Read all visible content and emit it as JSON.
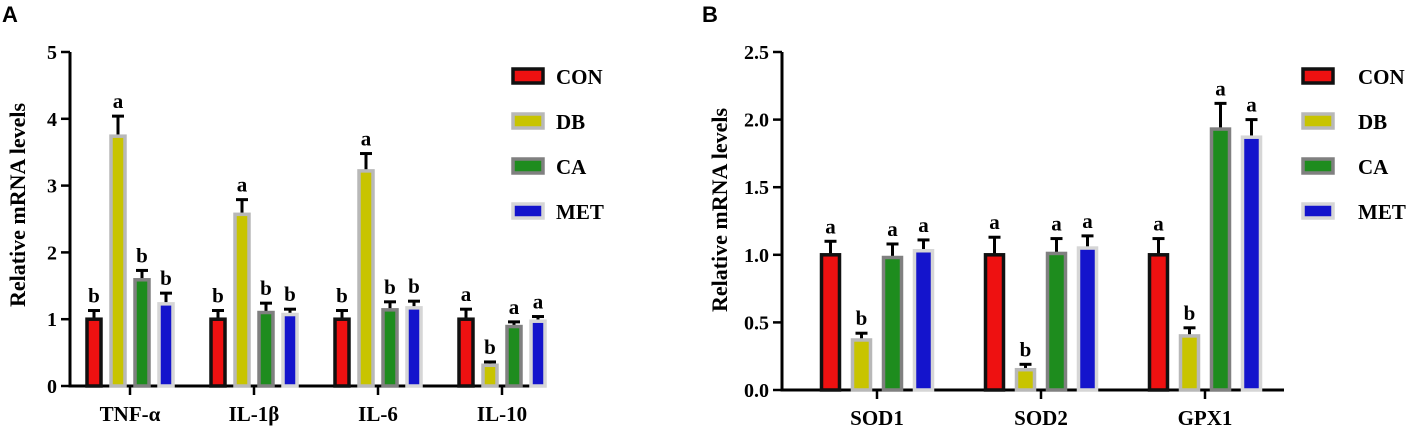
{
  "colors": {
    "CON": {
      "fill": "#ee1111",
      "stroke": "#111111"
    },
    "DB": {
      "fill": "#c8c400",
      "stroke": "#b8b8b8"
    },
    "CA": {
      "fill": "#1e8c1e",
      "stroke": "#808080"
    },
    "MET": {
      "fill": "#1414cc",
      "stroke": "#d6d6d6"
    }
  },
  "chart_data": [
    {
      "panel": "A",
      "type": "bar",
      "ylabel": "Relative mRNA levels",
      "ylim": [
        0,
        5
      ],
      "yticks": [
        "0",
        "1",
        "2",
        "3",
        "4",
        "5"
      ],
      "categories": [
        "TNF-α",
        "IL-1β",
        "IL-6",
        "IL-10"
      ],
      "series": [
        {
          "name": "CON",
          "values": [
            1.0,
            1.0,
            1.0,
            1.0
          ],
          "errors": [
            0.13,
            0.13,
            0.13,
            0.15
          ],
          "labels": [
            "b",
            "b",
            "b",
            "a"
          ]
        },
        {
          "name": "DB",
          "values": [
            3.74,
            2.57,
            3.22,
            0.31
          ],
          "errors": [
            0.3,
            0.22,
            0.26,
            0.05
          ],
          "labels": [
            "a",
            "a",
            "a",
            "b"
          ]
        },
        {
          "name": "CA",
          "values": [
            1.59,
            1.1,
            1.14,
            0.89
          ],
          "errors": [
            0.14,
            0.14,
            0.12,
            0.07
          ],
          "labels": [
            "b",
            "b",
            "b",
            "a"
          ]
        },
        {
          "name": "MET",
          "values": [
            1.23,
            1.07,
            1.17,
            0.97
          ],
          "errors": [
            0.16,
            0.08,
            0.1,
            0.07
          ],
          "labels": [
            "b",
            "b",
            "b",
            "a"
          ]
        }
      ],
      "legend": {
        "placement": "right",
        "entries": [
          "CON",
          "DB",
          "CA",
          "MET"
        ]
      }
    },
    {
      "panel": "B",
      "type": "bar",
      "ylabel": "Relative mRNA levels",
      "ylim": [
        0,
        2.5
      ],
      "yticks": [
        "0.0",
        "0.5",
        "1.0",
        "1.5",
        "2.0",
        "2.5"
      ],
      "categories": [
        "SOD1",
        "SOD2",
        "GPX1"
      ],
      "series": [
        {
          "name": "CON",
          "values": [
            1.0,
            1.0,
            1.0
          ],
          "errors": [
            0.1,
            0.13,
            0.12
          ],
          "labels": [
            "a",
            "a",
            "a"
          ]
        },
        {
          "name": "DB",
          "values": [
            0.37,
            0.15,
            0.4
          ],
          "errors": [
            0.05,
            0.04,
            0.06
          ],
          "labels": [
            "b",
            "b",
            "b"
          ]
        },
        {
          "name": "CA",
          "values": [
            0.98,
            1.01,
            1.93
          ],
          "errors": [
            0.1,
            0.11,
            0.19
          ],
          "labels": [
            "a",
            "a",
            "a"
          ]
        },
        {
          "name": "MET",
          "values": [
            1.03,
            1.05,
            1.87
          ],
          "errors": [
            0.08,
            0.09,
            0.13
          ],
          "labels": [
            "a",
            "a",
            "a"
          ]
        }
      ],
      "legend": {
        "placement": "right",
        "entries": [
          "CON",
          "DB",
          "CA",
          "MET"
        ]
      }
    }
  ]
}
